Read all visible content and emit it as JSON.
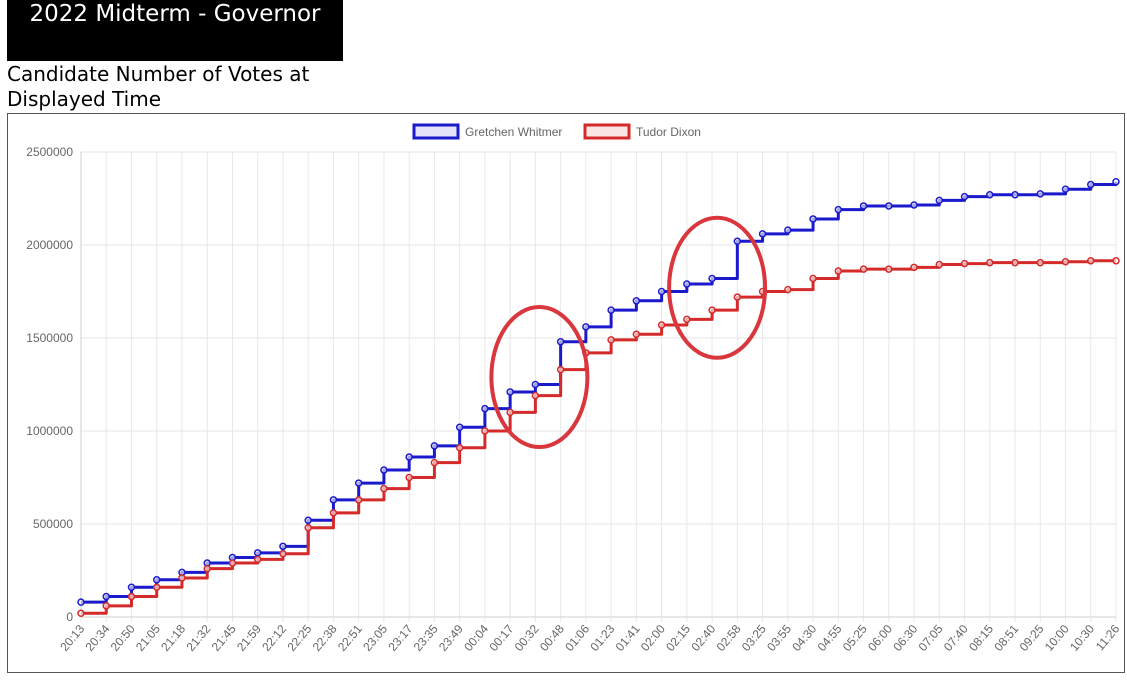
{
  "header": {
    "title": "2022 Midterm - Governor",
    "subtitle": "Candidate Number of Votes at Displayed Time"
  },
  "chart_data": {
    "type": "line",
    "title": "",
    "xlabel": "",
    "ylabel": "",
    "ylim": [
      0,
      2500000
    ],
    "yticks": [
      0,
      500000,
      1000000,
      1500000,
      2000000,
      2500000
    ],
    "grid": true,
    "legend_position": "top-center",
    "categories": [
      "20:13",
      "20:34",
      "20:50",
      "21:05",
      "21:18",
      "21:32",
      "21:45",
      "21:59",
      "22:12",
      "22:25",
      "22:38",
      "22:51",
      "23:05",
      "23:17",
      "23:35",
      "23:49",
      "00:04",
      "00:17",
      "00:32",
      "00:48",
      "01:06",
      "01:23",
      "01:41",
      "02:00",
      "02:15",
      "02:40",
      "02:58",
      "03:25",
      "03:55",
      "04:30",
      "04:55",
      "05:25",
      "06:00",
      "06:30",
      "07:05",
      "07:40",
      "08:15",
      "08:51",
      "09:25",
      "10:00",
      "10:30",
      "11:26"
    ],
    "series": [
      {
        "name": "Gretchen Whitmer",
        "color": "#1a1acc",
        "values": [
          80000,
          110000,
          160000,
          200000,
          240000,
          290000,
          320000,
          345000,
          380000,
          520000,
          630000,
          720000,
          790000,
          860000,
          920000,
          1020000,
          1120000,
          1210000,
          1250000,
          1480000,
          1560000,
          1650000,
          1700000,
          1750000,
          1790000,
          1820000,
          2020000,
          2060000,
          2080000,
          2140000,
          2190000,
          2210000,
          2210000,
          2215000,
          2240000,
          2260000,
          2270000,
          2270000,
          2275000,
          2300000,
          2325000,
          2340000
        ]
      },
      {
        "name": "Tudor Dixon",
        "color": "#d42a2a",
        "values": [
          20000,
          60000,
          110000,
          160000,
          210000,
          260000,
          290000,
          310000,
          340000,
          480000,
          560000,
          630000,
          690000,
          750000,
          830000,
          910000,
          1000000,
          1100000,
          1190000,
          1330000,
          1420000,
          1490000,
          1520000,
          1570000,
          1600000,
          1650000,
          1720000,
          1750000,
          1760000,
          1820000,
          1860000,
          1870000,
          1870000,
          1880000,
          1895000,
          1900000,
          1905000,
          1905000,
          1905000,
          1910000,
          1915000,
          1915000
        ]
      }
    ],
    "annotations": [
      {
        "type": "ellipse",
        "color": "#d9363e",
        "x_category": "00:32"
      },
      {
        "type": "ellipse",
        "color": "#d9363e",
        "x_category": "02:40"
      }
    ]
  }
}
